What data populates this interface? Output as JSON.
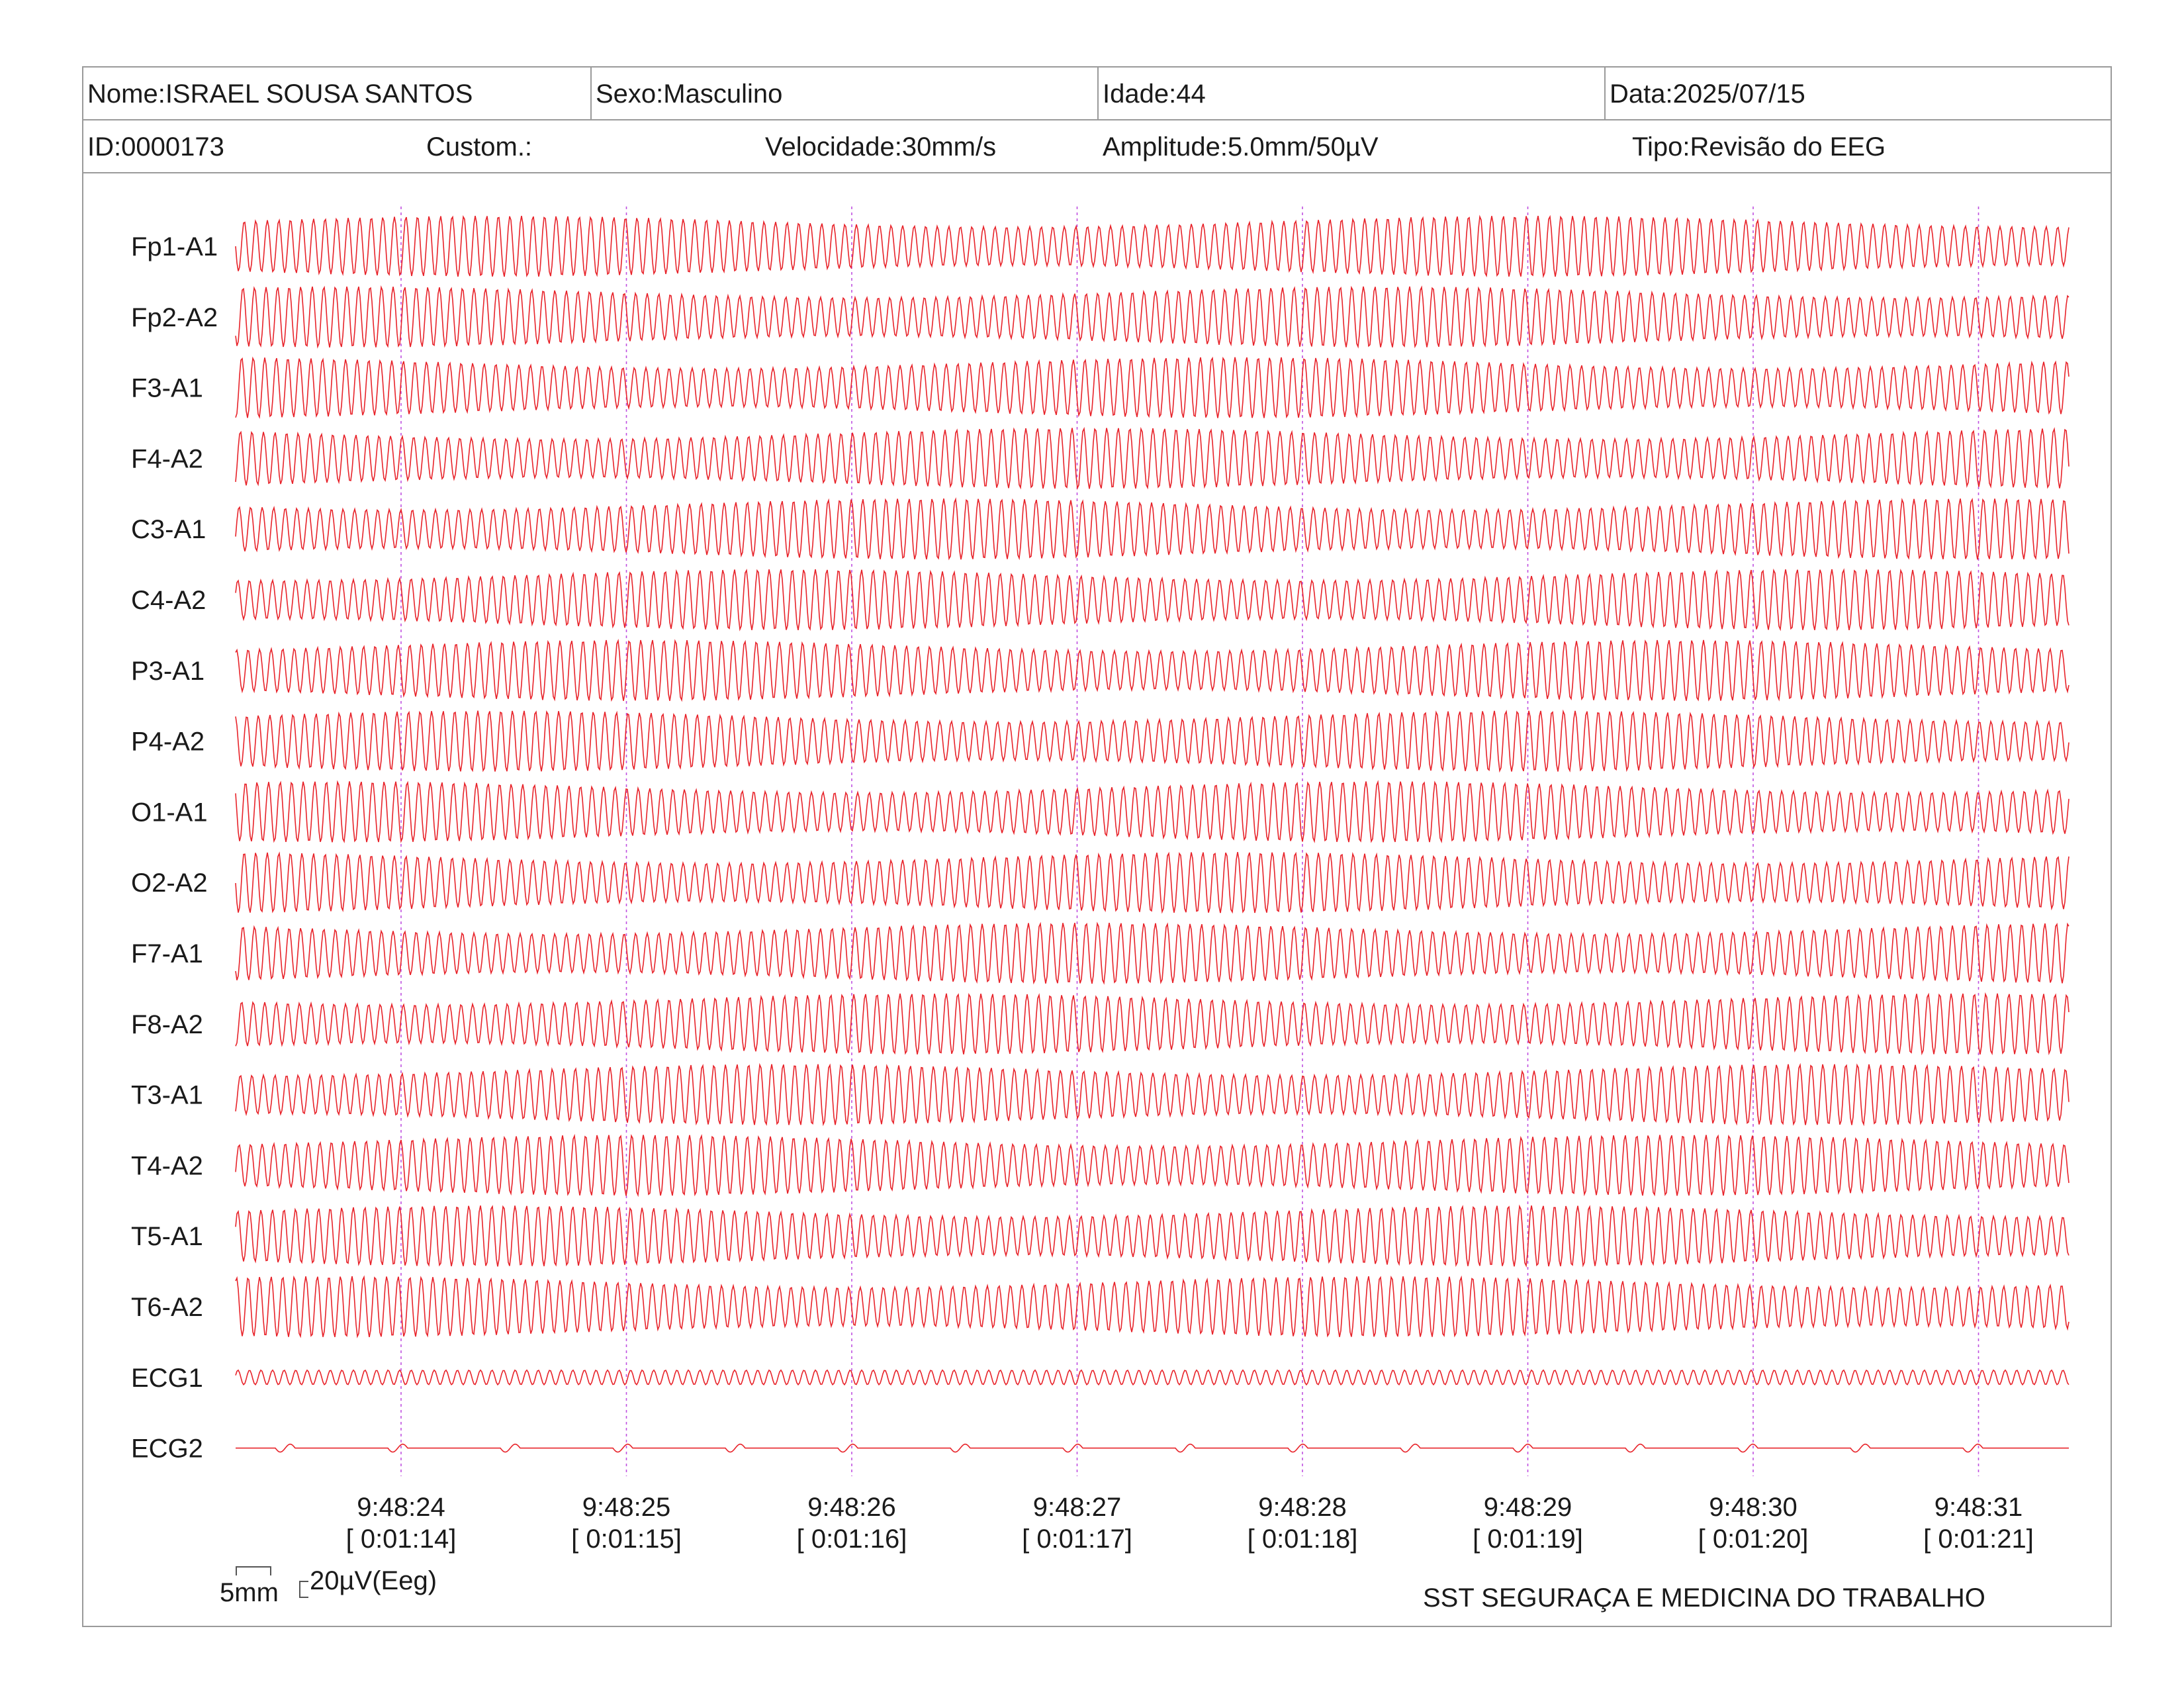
{
  "header": {
    "nome": "Nome:ISRAEL SOUSA SANTOS",
    "sexo": "Sexo:Masculino",
    "idade": "Idade:44",
    "data": "Data:2025/07/15",
    "id": "ID:0000173",
    "custom": "Custom.:",
    "velocidade": "Velocidade:30mm/s",
    "amplitude": "Amplitude:5.0mm/50µV",
    "tipo": "Tipo:Revisão do EEG"
  },
  "channels": [
    "Fp1-A1",
    "Fp2-A2",
    "F3-A1",
    "F4-A2",
    "C3-A1",
    "C4-A2",
    "P3-A1",
    "P4-A2",
    "O1-A1",
    "O2-A2",
    "F7-A1",
    "F8-A2",
    "T3-A1",
    "T4-A2",
    "T5-A1",
    "T6-A2",
    "ECG1",
    "ECG2"
  ],
  "time_marks": [
    {
      "clock": "9:48:24",
      "elapsed": "[ 0:01:14]"
    },
    {
      "clock": "9:48:25",
      "elapsed": "[ 0:01:15]"
    },
    {
      "clock": "9:48:26",
      "elapsed": "[ 0:01:16]"
    },
    {
      "clock": "9:48:27",
      "elapsed": "[ 0:01:17]"
    },
    {
      "clock": "9:48:28",
      "elapsed": "[ 0:01:18]"
    },
    {
      "clock": "9:48:29",
      "elapsed": "[ 0:01:19]"
    },
    {
      "clock": "9:48:30",
      "elapsed": "[ 0:01:20]"
    },
    {
      "clock": "9:48:31",
      "elapsed": "[ 0:01:21]"
    }
  ],
  "scale": {
    "time": "5mm",
    "amplitude": "20µV(Eeg)"
  },
  "footer": {
    "organization": "SST SEGURAÇA E MEDICINA DO TRABALHO"
  },
  "colors": {
    "trace": "#e8232a",
    "marker": "#c050e0",
    "border": "#9a9a9a"
  }
}
